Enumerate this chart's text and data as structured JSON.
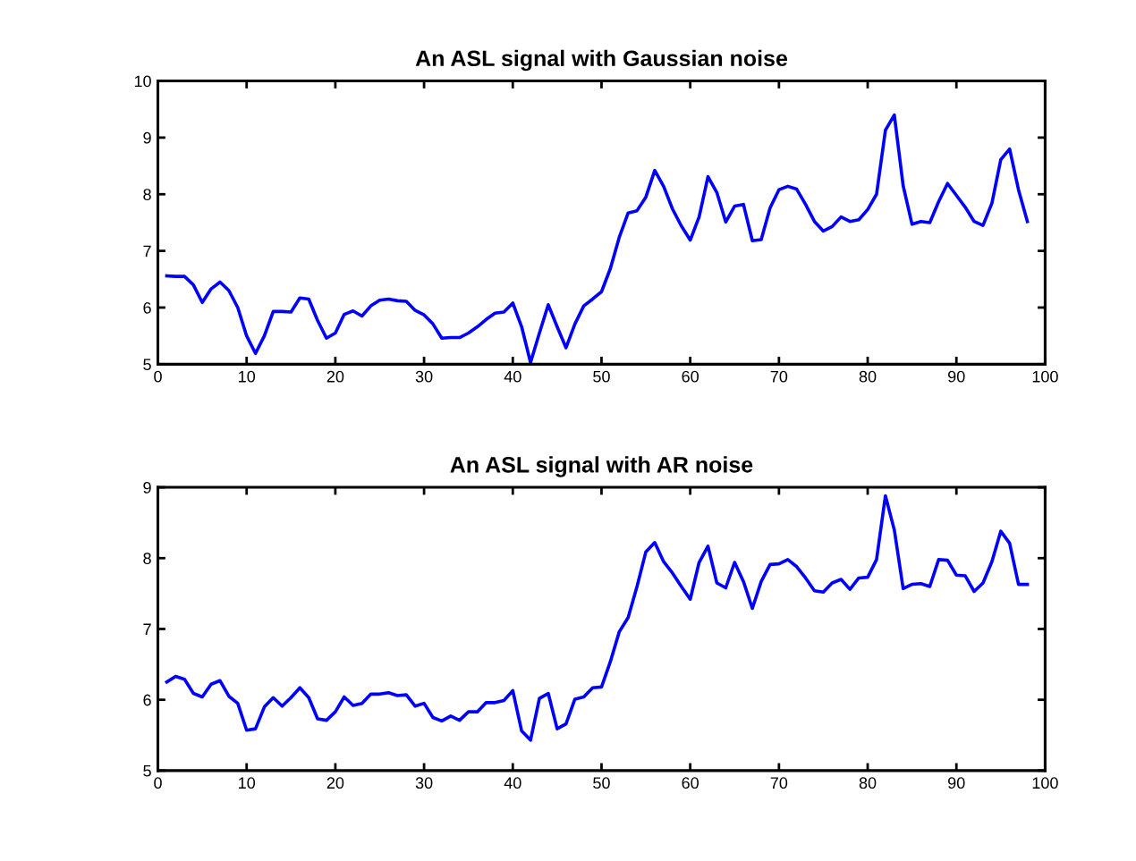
{
  "chart_data": [
    {
      "type": "line",
      "title": "An ASL signal with Gaussian noise",
      "xlim": [
        0,
        100
      ],
      "xticks": [
        0,
        10,
        20,
        30,
        40,
        50,
        60,
        70,
        80,
        90,
        100
      ],
      "ylim": [
        5,
        10
      ],
      "yticks": [
        5,
        6,
        7,
        8,
        9,
        10
      ],
      "grid": false,
      "marker": "none",
      "line_style": "solid",
      "x": [
        1,
        2,
        3,
        4,
        5,
        6,
        7,
        8,
        9,
        10,
        11,
        12,
        13,
        14,
        15,
        16,
        17,
        18,
        19,
        20,
        21,
        22,
        23,
        24,
        25,
        26,
        27,
        28,
        29,
        30,
        31,
        32,
        33,
        34,
        35,
        36,
        37,
        38,
        39,
        40,
        41,
        42,
        43,
        44,
        45,
        46,
        47,
        48,
        49,
        50,
        51,
        52,
        53,
        54,
        55,
        56,
        57,
        58,
        59,
        60,
        61,
        62,
        63,
        64,
        65,
        66,
        67,
        68,
        69,
        70,
        71,
        72,
        73,
        74,
        75,
        76,
        77,
        78,
        79,
        80,
        81,
        82,
        83,
        84,
        85,
        86,
        87,
        88,
        89,
        90,
        91,
        92,
        93,
        94,
        95,
        96,
        97,
        98
      ],
      "series": [
        {
          "color": "#0000ff",
          "values": [
            6.56,
            6.55,
            6.55,
            6.4,
            6.09,
            6.33,
            6.45,
            6.3,
            6.0,
            5.5,
            5.19,
            5.5,
            5.93,
            5.93,
            5.92,
            6.17,
            6.15,
            5.77,
            5.46,
            5.55,
            5.88,
            5.94,
            5.85,
            6.03,
            6.13,
            6.15,
            6.12,
            6.11,
            5.95,
            5.87,
            5.71,
            5.46,
            5.47,
            5.47,
            5.55,
            5.66,
            5.79,
            5.9,
            5.92,
            6.08,
            5.66,
            5.03,
            5.55,
            6.05,
            5.66,
            5.29,
            5.71,
            6.03,
            6.15,
            6.28,
            6.69,
            7.24,
            7.67,
            7.71,
            7.95,
            8.42,
            8.14,
            7.74,
            7.44,
            7.19,
            7.6,
            8.31,
            8.03,
            7.51,
            7.79,
            7.82,
            7.18,
            7.2,
            7.76,
            8.08,
            8.14,
            8.09,
            7.82,
            7.52,
            7.35,
            7.43,
            7.6,
            7.52,
            7.55,
            7.73,
            8.0,
            9.13,
            9.4,
            8.15,
            7.47,
            7.52,
            7.5,
            7.87,
            8.19,
            7.98,
            7.77,
            7.52,
            7.45,
            7.84,
            8.61,
            8.8,
            8.08,
            7.52
          ]
        }
      ]
    },
    {
      "type": "line",
      "title": "An ASL signal with AR noise",
      "xlim": [
        0,
        100
      ],
      "xticks": [
        0,
        10,
        20,
        30,
        40,
        50,
        60,
        70,
        80,
        90,
        100
      ],
      "ylim": [
        5,
        9
      ],
      "yticks": [
        5,
        6,
        7,
        8,
        9
      ],
      "grid": false,
      "marker": "none",
      "line_style": "solid",
      "x": [
        1,
        2,
        3,
        4,
        5,
        6,
        7,
        8,
        9,
        10,
        11,
        12,
        13,
        14,
        15,
        16,
        17,
        18,
        19,
        20,
        21,
        22,
        23,
        24,
        25,
        26,
        27,
        28,
        29,
        30,
        31,
        32,
        33,
        34,
        35,
        36,
        37,
        38,
        39,
        40,
        41,
        42,
        43,
        44,
        45,
        46,
        47,
        48,
        49,
        50,
        51,
        52,
        53,
        54,
        55,
        56,
        57,
        58,
        59,
        60,
        61,
        62,
        63,
        64,
        65,
        66,
        67,
        68,
        69,
        70,
        71,
        72,
        73,
        74,
        75,
        76,
        77,
        78,
        79,
        80,
        81,
        82,
        83,
        84,
        85,
        86,
        87,
        88,
        89,
        90,
        91,
        92,
        93,
        94,
        95,
        96,
        97,
        98
      ],
      "series": [
        {
          "color": "#0000ff",
          "values": [
            6.25,
            6.33,
            6.29,
            6.09,
            6.04,
            6.22,
            6.27,
            6.05,
            5.95,
            5.57,
            5.59,
            5.9,
            6.03,
            5.91,
            6.03,
            6.17,
            6.03,
            5.73,
            5.71,
            5.83,
            6.04,
            5.92,
            5.95,
            6.08,
            6.08,
            6.1,
            6.06,
            6.07,
            5.91,
            5.95,
            5.75,
            5.7,
            5.77,
            5.71,
            5.83,
            5.83,
            5.96,
            5.96,
            5.99,
            6.13,
            5.56,
            5.43,
            6.02,
            6.09,
            5.59,
            5.66,
            6.01,
            6.04,
            6.17,
            6.18,
            6.54,
            6.96,
            7.16,
            7.6,
            8.09,
            8.22,
            7.95,
            7.79,
            7.6,
            7.42,
            7.94,
            8.17,
            7.65,
            7.58,
            7.94,
            7.67,
            7.29,
            7.67,
            7.91,
            7.92,
            7.98,
            7.88,
            7.72,
            7.54,
            7.52,
            7.65,
            7.7,
            7.56,
            7.72,
            7.73,
            7.98,
            8.88,
            8.4,
            7.57,
            7.63,
            7.64,
            7.6,
            7.98,
            7.97,
            7.76,
            7.75,
            7.53,
            7.65,
            7.95,
            8.38,
            8.21,
            7.63,
            7.63
          ]
        }
      ]
    }
  ]
}
